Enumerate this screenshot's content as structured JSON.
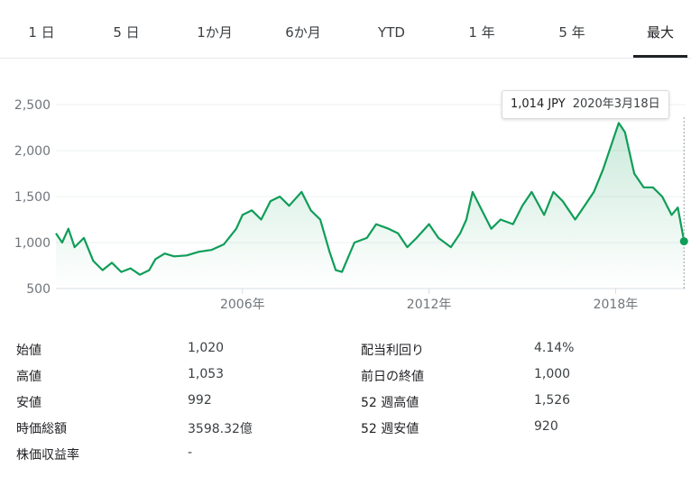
{
  "tabs": [
    {
      "label": "1 日",
      "active": false
    },
    {
      "label": "5 日",
      "active": false
    },
    {
      "label": "1か月",
      "active": false
    },
    {
      "label": "6か月",
      "active": false
    },
    {
      "label": "YTD",
      "active": false
    },
    {
      "label": "1 年",
      "active": false
    },
    {
      "label": "5 年",
      "active": false
    },
    {
      "label": "最大",
      "active": true
    }
  ],
  "tooltip": {
    "price": "1,014 JPY",
    "date": "2020年3月18日"
  },
  "colors": {
    "line": "#0f9d58",
    "fill": "#0f9d58",
    "grid": "#eef0f2",
    "axis": "#dadce0"
  },
  "chart_data": {
    "type": "line",
    "title": "",
    "xlabel": "",
    "ylabel": "",
    "ylim": [
      500,
      2500
    ],
    "yticks": [
      2500,
      2000,
      1500,
      1000,
      500
    ],
    "ytick_labels": [
      "2,500",
      "2,000",
      "1,500",
      "1,000",
      "500"
    ],
    "xticks": [
      2006,
      2012,
      2018
    ],
    "xtick_labels": [
      "2006年",
      "2012年",
      "2018年"
    ],
    "xlim": [
      2000.0,
      2020.25
    ],
    "grid": true,
    "series": [
      {
        "x": [
          2000.0,
          2000.2,
          2000.4,
          2000.6,
          2000.9,
          2001.2,
          2001.5,
          2001.8,
          2002.1,
          2002.4,
          2002.7,
          2003.0,
          2003.2,
          2003.5,
          2003.8,
          2004.2,
          2004.6,
          2005.0,
          2005.4,
          2005.8,
          2006.0,
          2006.3,
          2006.6,
          2006.9,
          2007.2,
          2007.5,
          2007.9,
          2008.2,
          2008.5,
          2008.8,
          2009.0,
          2009.2,
          2009.6,
          2010.0,
          2010.3,
          2010.7,
          2011.0,
          2011.3,
          2011.6,
          2012.0,
          2012.3,
          2012.7,
          2013.0,
          2013.2,
          2013.4,
          2013.7,
          2014.0,
          2014.3,
          2014.7,
          2015.0,
          2015.3,
          2015.7,
          2016.0,
          2016.3,
          2016.7,
          2017.0,
          2017.3,
          2017.6,
          2017.9,
          2018.1,
          2018.3,
          2018.6,
          2018.9,
          2019.2,
          2019.5,
          2019.8,
          2020.0,
          2020.2
        ],
        "y": [
          1100,
          1000,
          1150,
          950,
          1050,
          800,
          700,
          780,
          680,
          720,
          650,
          700,
          820,
          880,
          850,
          860,
          900,
          920,
          980,
          1150,
          1300,
          1350,
          1250,
          1450,
          1500,
          1400,
          1550,
          1350,
          1250,
          900,
          700,
          680,
          1000,
          1050,
          1200,
          1150,
          1100,
          950,
          1050,
          1200,
          1050,
          950,
          1100,
          1250,
          1550,
          1350,
          1150,
          1250,
          1200,
          1400,
          1550,
          1300,
          1550,
          1450,
          1250,
          1400,
          1550,
          1800,
          2100,
          2300,
          2200,
          1750,
          1600,
          1600,
          1500,
          1300,
          1380,
          1014
        ]
      }
    ]
  },
  "stats": [
    {
      "label": "始値",
      "value": "1,020",
      "label2": "配当利回り",
      "value2": "4.14%"
    },
    {
      "label": "高値",
      "value": "1,053",
      "label2": "前日の終値",
      "value2": "1,000"
    },
    {
      "label": "安値",
      "value": "992",
      "label2": "52 週高値",
      "value2": "1,526"
    },
    {
      "label": "時価総額",
      "value": "3598.32億",
      "label2": "52 週安値",
      "value2": "920"
    },
    {
      "label": "株価収益率",
      "value": "-",
      "label2": "",
      "value2": ""
    }
  ]
}
